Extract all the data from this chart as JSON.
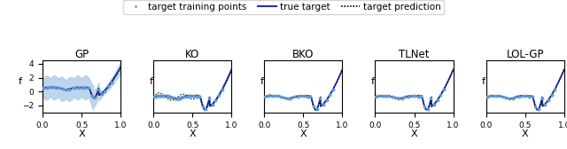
{
  "titles": [
    "GP",
    "KO",
    "BKO",
    "TLNet",
    "LOL-GP"
  ],
  "legend_labels": [
    "target training points",
    "true target",
    "target prediction"
  ],
  "scatter_color": "#5b9bd5",
  "line_color": "#2030b0",
  "pred_color": "#000000",
  "fill_color": "#aac8e8",
  "x_label": "X",
  "y_label": "f",
  "x_ticks": [
    0.0,
    0.5,
    1.0
  ],
  "gp_ylim": [
    -3.0,
    4.5
  ],
  "other_ylim": [
    -1.2,
    4.5
  ],
  "gp_yticks": [
    -2,
    0,
    2,
    4
  ],
  "figsize": [
    6.4,
    1.68
  ],
  "dpi": 100
}
